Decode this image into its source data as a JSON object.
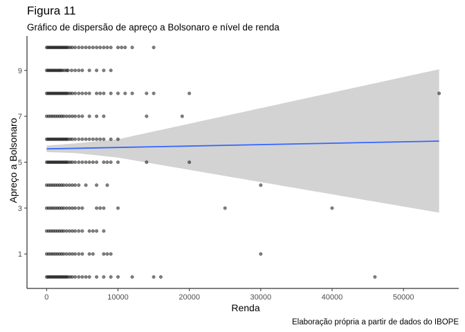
{
  "title": "Figura 11",
  "subtitle": "Gráfico de dispersão de apreço a Bolsonaro e nível de renda",
  "caption": "Elaboração própria a partir de dados do IBOPE",
  "chart_data": {
    "type": "scatter",
    "xlabel": "Renda",
    "ylabel": "Apreço a Bolsonaro",
    "xlim": [
      -2750,
      57750
    ],
    "ylim": [
      -0.5,
      10.5
    ],
    "xticks": [
      0,
      10000,
      20000,
      30000,
      40000,
      50000
    ],
    "xtick_labels": [
      "0",
      "10000",
      "20000",
      "30000",
      "40000",
      "50000"
    ],
    "yticks": [
      1,
      3,
      5,
      7,
      9
    ],
    "ytick_labels": [
      "1",
      "3",
      "5",
      "7",
      "9"
    ],
    "grid": false,
    "point_color": "#000000",
    "trend_color": "#3366ff",
    "band_color": "#d3d3d3",
    "axis_color": "#000000",
    "points": [
      {
        "y": 10,
        "x": [
          0,
          200,
          400,
          600,
          800,
          1000,
          1200,
          1400,
          1600,
          1800,
          2000,
          2200,
          2400,
          2600,
          2800,
          3000,
          3300,
          3600,
          4000,
          4500,
          5000,
          5500,
          6000,
          6500,
          7000,
          7500,
          8000,
          8500,
          9000,
          10000,
          10500,
          11000,
          12000,
          15000
        ]
      },
      {
        "y": 9,
        "x": [
          0,
          200,
          400,
          600,
          800,
          1000,
          1200,
          1400,
          1600,
          1800,
          2000,
          2200,
          2500,
          2800,
          3000,
          3500,
          4000,
          4500,
          5000,
          6000,
          7000,
          8000,
          9000
        ]
      },
      {
        "y": 8,
        "x": [
          0,
          200,
          400,
          600,
          800,
          1000,
          1200,
          1400,
          1600,
          1800,
          2000,
          2200,
          2400,
          2600,
          2800,
          3000,
          3300,
          3600,
          4000,
          4500,
          5000,
          5500,
          6000,
          7000,
          7500,
          8000,
          9000,
          10000,
          11000,
          12000,
          14000,
          15000,
          20000,
          55000
        ]
      },
      {
        "y": 7,
        "x": [
          0,
          300,
          600,
          900,
          1200,
          1500,
          1800,
          2100,
          2400,
          2800,
          3200,
          3600,
          4000,
          4500,
          5000,
          6000,
          7000,
          8000,
          14000,
          19000
        ]
      },
      {
        "y": 6,
        "x": [
          0,
          200,
          400,
          600,
          800,
          1000,
          1200,
          1400,
          1600,
          1800,
          2000,
          2200,
          2400,
          2600,
          2800,
          3000,
          3300,
          3600,
          4000,
          4500,
          5000,
          5500,
          6000,
          6500,
          7000,
          7500,
          8000,
          9000,
          10000
        ]
      },
      {
        "y": 5,
        "x": [
          0,
          200,
          400,
          600,
          800,
          1000,
          1200,
          1400,
          1600,
          1800,
          2000,
          2200,
          2400,
          2600,
          2800,
          3000,
          3300,
          3600,
          4000,
          4500,
          5000,
          5500,
          6000,
          6500,
          7000,
          8000,
          8500,
          9000,
          10000,
          14000,
          20000
        ]
      },
      {
        "y": 4,
        "x": [
          0,
          300,
          600,
          900,
          1200,
          1500,
          1800,
          2100,
          2400,
          2800,
          3200,
          3600,
          4000,
          4500,
          5500,
          7000,
          8500,
          30000
        ]
      },
      {
        "y": 3,
        "x": [
          0,
          300,
          600,
          900,
          1200,
          1500,
          1800,
          2100,
          2400,
          2800,
          3200,
          3600,
          4000,
          4500,
          5000,
          7000,
          7500,
          8000,
          10000,
          25000,
          40000
        ]
      },
      {
        "y": 2,
        "x": [
          0,
          300,
          600,
          900,
          1200,
          1500,
          1800,
          2100,
          2400,
          2800,
          3200,
          3600,
          4000,
          4500,
          5000,
          6000,
          6500,
          7000,
          8000
        ]
      },
      {
        "y": 1,
        "x": [
          0,
          300,
          600,
          900,
          1200,
          1500,
          1800,
          2100,
          2400,
          2800,
          3200,
          3600,
          4000,
          4500,
          5000,
          6000,
          6500,
          8000,
          8500,
          9000,
          30000
        ]
      },
      {
        "y": 0,
        "x": [
          0,
          200,
          400,
          600,
          800,
          1000,
          1200,
          1400,
          1600,
          1800,
          2000,
          2200,
          2400,
          2600,
          2800,
          3000,
          3300,
          3600,
          4000,
          4500,
          5000,
          5500,
          6000,
          7000,
          8000,
          9000,
          10000,
          12000,
          15000,
          16000,
          46000
        ]
      }
    ],
    "trend": {
      "x": [
        0,
        55000
      ],
      "y": [
        5.58,
        5.92
      ]
    },
    "band": {
      "x": [
        0,
        4000,
        10000,
        55000
      ],
      "upper": [
        5.72,
        5.82,
        6.0,
        9.05
      ],
      "lower": [
        5.44,
        5.4,
        5.2,
        2.8
      ]
    }
  }
}
